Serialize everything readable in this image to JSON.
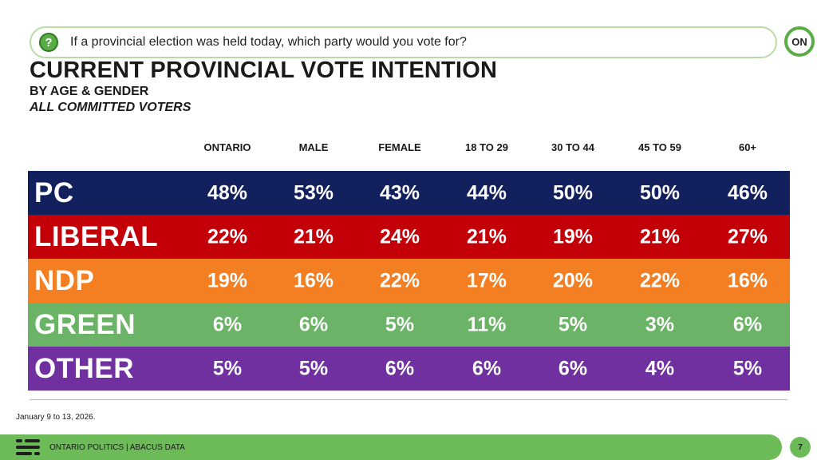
{
  "question": "If a provincial election was held today, which party would you vote for?",
  "logo_text": "ON",
  "title": "CURRENT PROVINCIAL VOTE INTENTION",
  "subtitle": "BY AGE & GENDER",
  "subtitle2": "ALL COMMITTED VOTERS",
  "footnote": "January 9 to 13, 2026.",
  "footer_text": "ONTARIO POLITICS  |  ABACUS DATA",
  "page_number": "7",
  "chart_data": {
    "type": "table",
    "title": "CURRENT PROVINCIAL VOTE INTENTION",
    "columns": [
      "ONTARIO",
      "MALE",
      "FEMALE",
      "18 TO 29",
      "30 TO 44",
      "45 TO 59",
      "60+"
    ],
    "rows": [
      {
        "party": "PC",
        "color": "#12205e",
        "values": [
          "48%",
          "53%",
          "43%",
          "44%",
          "50%",
          "50%",
          "46%"
        ]
      },
      {
        "party": "LIBERAL",
        "color": "#c30008",
        "values": [
          "22%",
          "21%",
          "24%",
          "21%",
          "19%",
          "21%",
          "27%"
        ]
      },
      {
        "party": "NDP",
        "color": "#f47f22",
        "values": [
          "19%",
          "16%",
          "22%",
          "17%",
          "20%",
          "22%",
          "16%"
        ]
      },
      {
        "party": "GREEN",
        "color": "#6bb366",
        "values": [
          "6%",
          "6%",
          "5%",
          "11%",
          "5%",
          "3%",
          "6%"
        ]
      },
      {
        "party": "OTHER",
        "color": "#7030a0",
        "values": [
          "5%",
          "5%",
          "6%",
          "6%",
          "6%",
          "4%",
          "5%"
        ]
      }
    ]
  }
}
